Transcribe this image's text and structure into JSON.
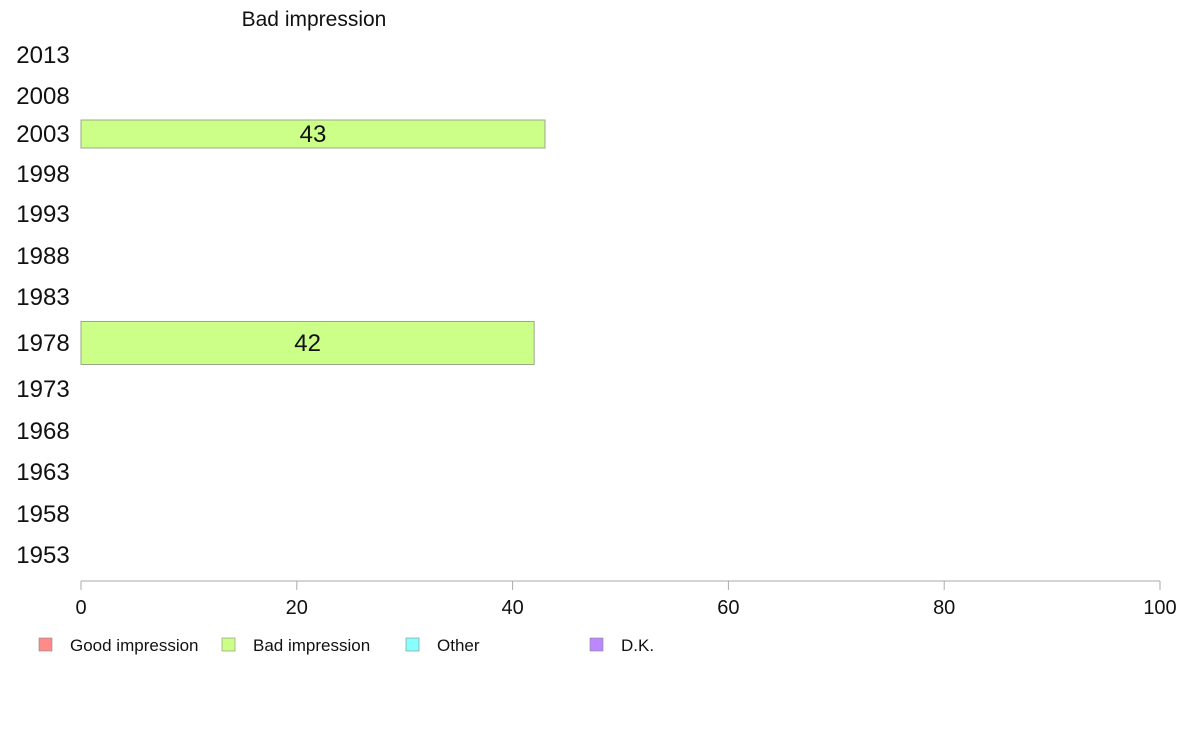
{
  "chart_data": {
    "type": "bar",
    "orientation": "horizontal",
    "title": "Bad impression",
    "categories": [
      "2013",
      "2008",
      "2003",
      "1998",
      "1993",
      "1988",
      "1983",
      "1978",
      "1973",
      "1968",
      "1963",
      "1958",
      "1953"
    ],
    "series": [
      {
        "name": "Bad impression",
        "color": "#ccff88",
        "values": [
          null,
          null,
          43,
          null,
          null,
          null,
          null,
          42,
          null,
          null,
          null,
          null,
          null
        ]
      }
    ],
    "xlim": [
      0,
      100
    ],
    "x_ticks": [
      "0",
      "20",
      "40",
      "60",
      "80",
      "100"
    ],
    "grid": false,
    "legend": {
      "placement": "bottom-left",
      "items": [
        {
          "label": "Good impression",
          "color": "#ff8a8a"
        },
        {
          "label": "Bad impression",
          "color": "#ccff88"
        },
        {
          "label": "Other",
          "color": "#88ffff"
        },
        {
          "label": "D.K.",
          "color": "#bb88ff"
        }
      ]
    }
  }
}
